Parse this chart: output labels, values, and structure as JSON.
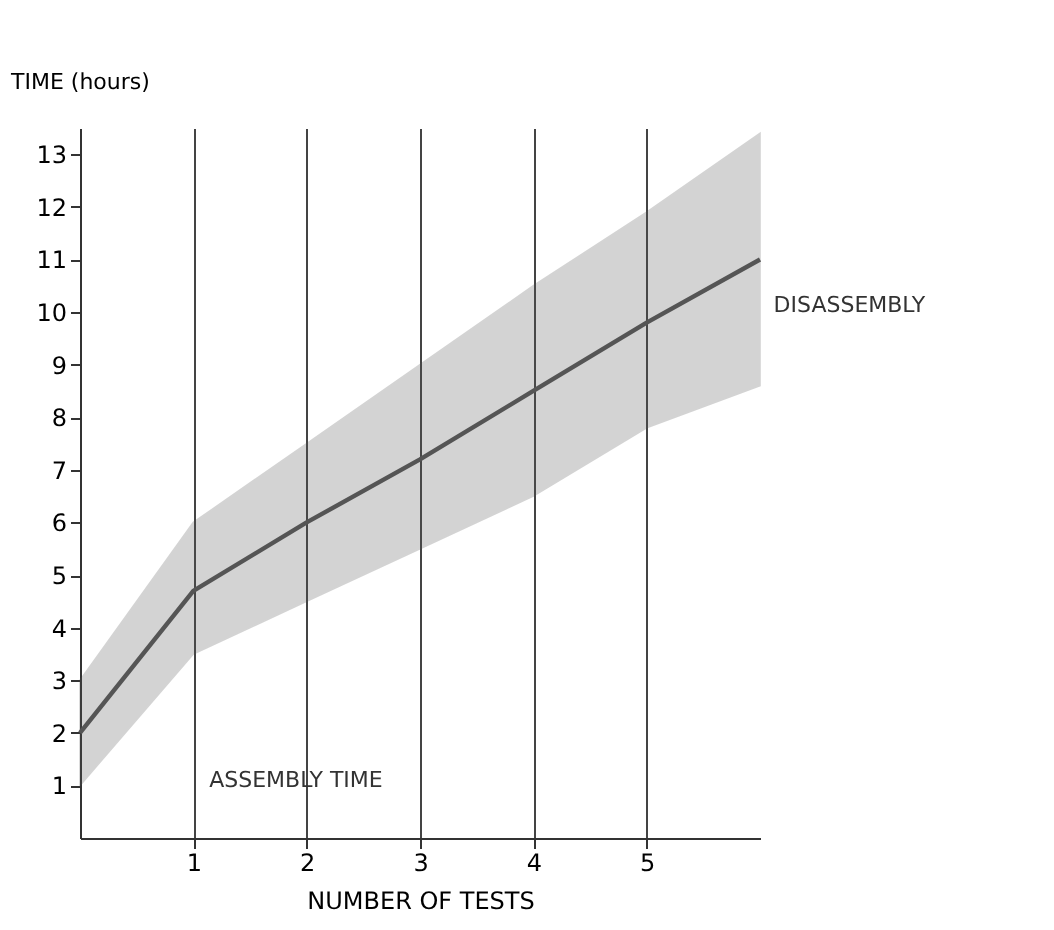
{
  "chart_data": {
    "type": "line",
    "xlabel": "NUMBER OF TESTS",
    "ylabel": "TIME (hours)",
    "x": [
      0,
      1,
      2,
      3,
      4,
      5,
      6
    ],
    "series": [
      {
        "color": "#555555",
        "values": [
          2,
          4.7,
          6,
          7.2,
          8.5,
          9.8,
          11.0
        ],
        "lower": [
          1,
          3.5,
          4.5,
          5.5,
          6.5,
          7.8,
          8.6
        ],
        "upper": [
          3,
          6,
          7.5,
          9,
          10.5,
          11.9,
          13.4
        ]
      }
    ],
    "xlim": [
      0,
      6
    ],
    "xticks": [
      1,
      2,
      3,
      4,
      5
    ],
    "ylim": [
      0,
      13.5
    ],
    "yticks": [
      1,
      2,
      3,
      4,
      5,
      6,
      7,
      8,
      9,
      10,
      11,
      12,
      13
    ],
    "grid": "x",
    "marker": "none",
    "line_style": "solid",
    "annotations": [
      "ASSEMBLY TIME",
      "DISASSEMBLY"
    ]
  }
}
